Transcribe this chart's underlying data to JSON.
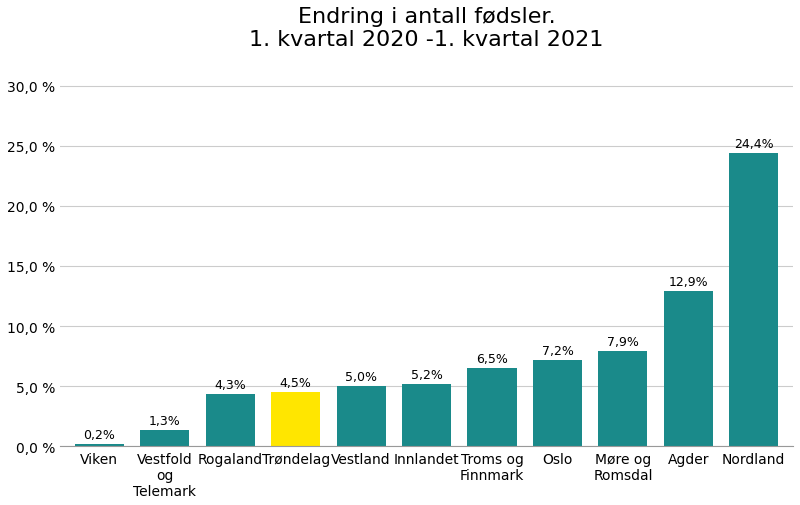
{
  "categories": [
    "Viken",
    "Vestfold\nog\nTelemark",
    "Rogaland",
    "Trøndelag",
    "Vestland",
    "Innlandet",
    "Troms og\nFinnmark",
    "Oslo",
    "Møre og\nRomsdal",
    "Agder",
    "Nordland"
  ],
  "values": [
    0.2,
    1.3,
    4.3,
    4.5,
    5.0,
    5.2,
    6.5,
    7.2,
    7.9,
    12.9,
    24.4
  ],
  "bar_colors": [
    "#1a8a8a",
    "#1a8a8a",
    "#1a8a8a",
    "#FFE600",
    "#1a8a8a",
    "#1a8a8a",
    "#1a8a8a",
    "#1a8a8a",
    "#1a8a8a",
    "#1a8a8a",
    "#1a8a8a"
  ],
  "title_line1": "Endring i antall fødsler.",
  "title_line2": "1. kvartal 2020 -1. kvartal 2021",
  "ylim": [
    0,
    32
  ],
  "yticks": [
    0,
    5,
    10,
    15,
    20,
    25,
    30
  ],
  "ytick_labels": [
    "0,0 %",
    "5,0 %",
    "10,0 %",
    "15,0 %",
    "20,0 %",
    "25,0 %",
    "30,0 %"
  ],
  "value_labels": [
    "0,2%",
    "1,3%",
    "4,3%",
    "4,5%",
    "5,0%",
    "5,2%",
    "6,5%",
    "7,2%",
    "7,9%",
    "12,9%",
    "24,4%"
  ],
  "title_fontsize": 16,
  "tick_fontsize": 10,
  "value_label_fontsize": 9,
  "background_color": "#ffffff",
  "bar_width": 0.75
}
